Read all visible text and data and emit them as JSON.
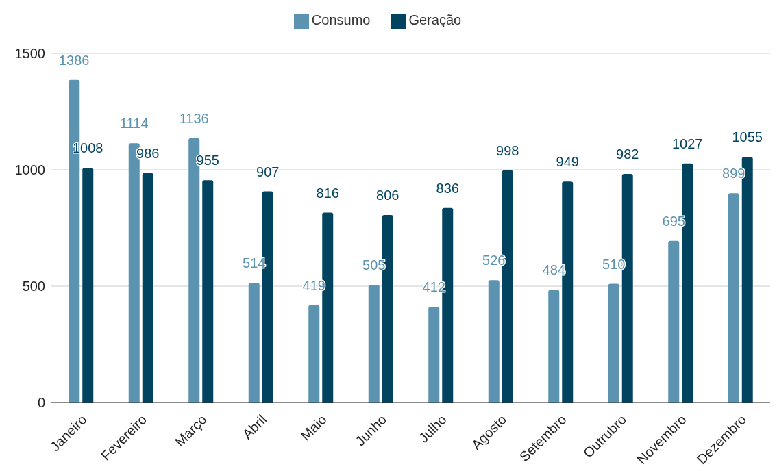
{
  "chart_data": {
    "type": "bar",
    "categories": [
      "Janeiro",
      "Fevereiro",
      "Março",
      "Abril",
      "Maio",
      "Junho",
      "Julho",
      "Agosto",
      "Setembro",
      "Outrubro",
      "Novembro",
      "Dezembro"
    ],
    "series": [
      {
        "name": "Consumo",
        "color": "#5b93b0",
        "values": [
          1386,
          1114,
          1136,
          514,
          419,
          505,
          412,
          526,
          484,
          510,
          695,
          899
        ]
      },
      {
        "name": "Geração",
        "color": "#02445f",
        "values": [
          1008,
          986,
          955,
          907,
          816,
          806,
          836,
          998,
          949,
          982,
          1027,
          1055
        ]
      }
    ],
    "ylim": [
      0,
      1500
    ],
    "yticks": [
      0,
      500,
      1000,
      1500
    ],
    "grid": "y",
    "legend": "top",
    "data_labels": true
  }
}
